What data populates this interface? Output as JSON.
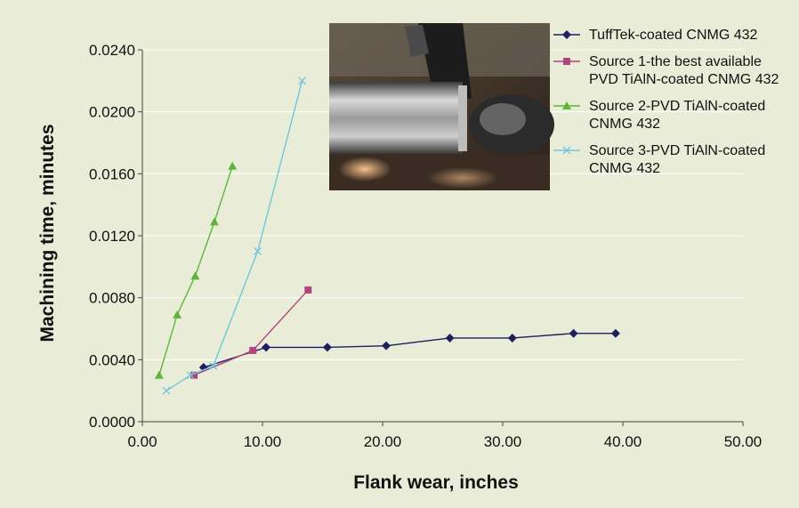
{
  "chart_data": {
    "type": "line",
    "title": "",
    "xlabel": "Flank wear, inches",
    "ylabel": "Machining time, minutes",
    "xlim": [
      0,
      50
    ],
    "ylim": [
      0,
      0.024
    ],
    "x_ticks": [
      "0.00",
      "10.00",
      "20.00",
      "30.00",
      "40.00",
      "50.00"
    ],
    "y_ticks": [
      "0.0000",
      "0.0040",
      "0.0080",
      "0.0120",
      "0.0160",
      "0.0200",
      "0.0240"
    ],
    "grid": "horizontal",
    "legend_position": "top-right",
    "series": [
      {
        "name": "TuffTek-coated CNMG 432",
        "marker": "diamond",
        "color": "#1f1f5f",
        "x": [
          5.1,
          10.3,
          15.4,
          20.3,
          25.6,
          30.8,
          35.9,
          39.4
        ],
        "y": [
          0.0035,
          0.0048,
          0.0048,
          0.0049,
          0.0054,
          0.0054,
          0.0057,
          0.0057
        ]
      },
      {
        "name": "Source 1-the best available PVD TiAlN-coated CNMG 432",
        "legend_lines": [
          "Source 1-the best available",
          "PVD TiAlN-coated CNMG 432"
        ],
        "marker": "square",
        "color": "#b0457f",
        "x": [
          4.3,
          9.2,
          13.8
        ],
        "y": [
          0.003,
          0.0046,
          0.0085
        ]
      },
      {
        "name": "Source 2-PVD TiAlN-coated CNMG 432",
        "legend_lines": [
          "Source 2-PVD TiAlN-coated",
          "CNMG 432"
        ],
        "marker": "triangle",
        "color": "#5fb43a",
        "x": [
          1.4,
          2.9,
          4.4,
          6.0,
          7.5
        ],
        "y": [
          0.003,
          0.0069,
          0.0094,
          0.0129,
          0.0165
        ]
      },
      {
        "name": "Source 3-PVD TiAlN-coated CNMG 432",
        "legend_lines": [
          "Source 3-PVD TiAlN-coated",
          "CNMG 432"
        ],
        "marker": "x",
        "color": "#6fc6dc",
        "x": [
          2.0,
          4.0,
          5.9,
          9.6,
          13.3
        ],
        "y": [
          0.002,
          0.003,
          0.0036,
          0.011,
          0.022
        ]
      }
    ]
  },
  "inset_photo": {
    "subject": "machining-photo"
  }
}
